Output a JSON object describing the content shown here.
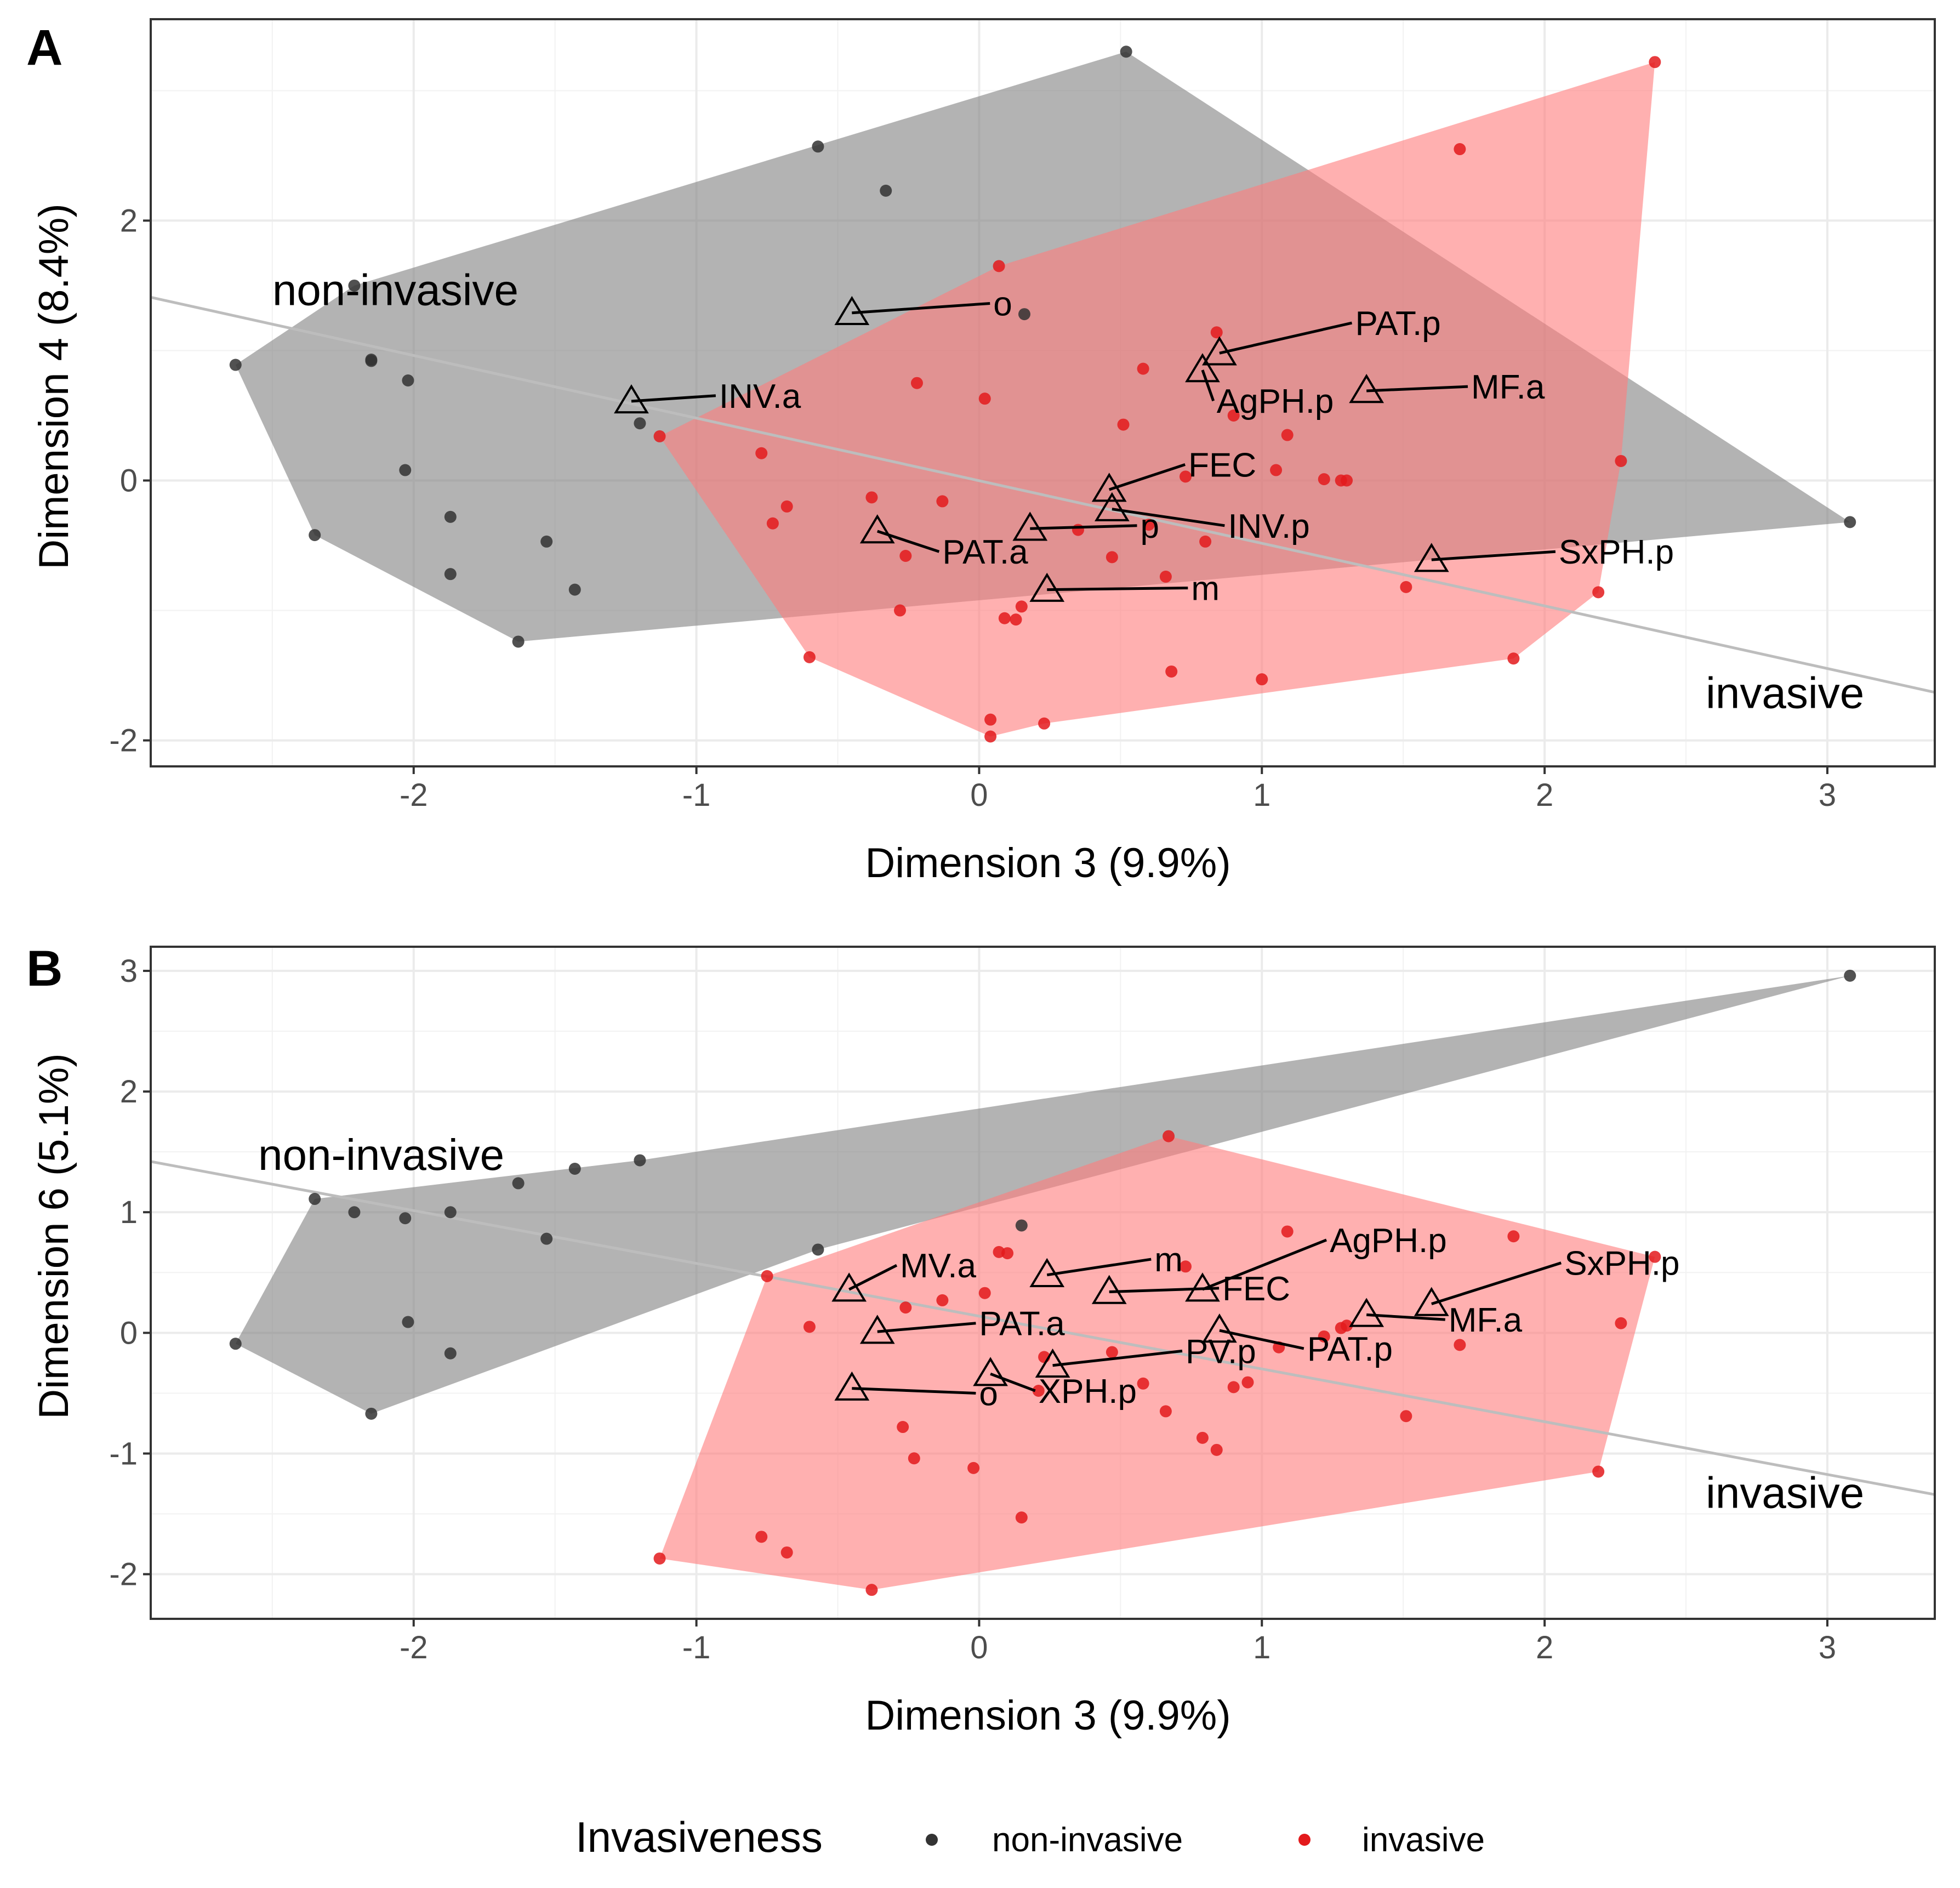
{
  "legend": {
    "title": "Invasiveness",
    "items": [
      {
        "label": "non-invasive",
        "color": "#333333"
      },
      {
        "label": "invasive",
        "color": "#e31a1c"
      }
    ]
  },
  "colors": {
    "non_invasive_point": "#333333",
    "invasive_point": "#e31a1c",
    "non_invasive_hull": "#808080",
    "invasive_hull": "#ff7b7b",
    "grid": "#ebebeb",
    "discriminant_line": "#bdbdbd"
  },
  "chart_data": [
    {
      "type": "scatter",
      "panel": "A",
      "xlabel": "Dimension 3 (9.9%)",
      "ylabel": "Dimension 4 (8.4%)",
      "xlim": [
        -2.93,
        3.38
      ],
      "ylim": [
        -2.2,
        3.55
      ],
      "xticks": [
        -2,
        -1,
        0,
        1,
        2,
        3
      ],
      "yticks": [
        -2,
        0,
        2
      ],
      "grid": true,
      "group_labels": [
        {
          "text": "non-invasive",
          "x": -2.5,
          "y": 1.35
        },
        {
          "text": "invasive",
          "x": 2.57,
          "y": -1.75
        }
      ],
      "discriminant_line": [
        [
          -2.93,
          1.41
        ],
        [
          3.38,
          -1.63
        ]
      ],
      "hulls": [
        {
          "group": "non-invasive",
          "points": [
            [
              -2.63,
              0.89
            ],
            [
              -2.21,
              1.5
            ],
            [
              0.52,
              3.3
            ],
            [
              3.08,
              -0.32
            ],
            [
              -1.63,
              -1.24
            ],
            [
              -2.35,
              -0.42
            ]
          ]
        },
        {
          "group": "invasive",
          "points": [
            [
              -1.13,
              0.34
            ],
            [
              0.07,
              1.65
            ],
            [
              2.39,
              3.22
            ],
            [
              2.27,
              0.15
            ],
            [
              2.19,
              -0.86
            ],
            [
              1.89,
              -1.37
            ],
            [
              0.23,
              -1.87
            ],
            [
              0.04,
              -1.97
            ],
            [
              -0.6,
              -1.36
            ]
          ]
        }
      ],
      "series": [
        {
          "name": "non-invasive",
          "points": [
            [
              -2.63,
              0.89
            ],
            [
              -2.21,
              1.5
            ],
            [
              -2.15,
              0.92
            ],
            [
              -2.15,
              0.93
            ],
            [
              -2.02,
              0.77
            ],
            [
              -2.03,
              0.08
            ],
            [
              -1.87,
              -0.28
            ],
            [
              -1.87,
              -0.72
            ],
            [
              -1.53,
              -0.47
            ],
            [
              -1.43,
              -0.84
            ],
            [
              -2.35,
              -0.42
            ],
            [
              -1.63,
              -1.24
            ],
            [
              -1.2,
              0.44
            ],
            [
              -0.57,
              2.57
            ],
            [
              -0.33,
              2.23
            ],
            [
              0.52,
              3.3
            ],
            [
              0.16,
              1.28
            ],
            [
              3.08,
              -0.32
            ]
          ]
        },
        {
          "name": "invasive",
          "points": [
            [
              -1.13,
              0.34
            ],
            [
              -0.77,
              0.21
            ],
            [
              -0.73,
              -0.33
            ],
            [
              -0.68,
              -0.2
            ],
            [
              -0.38,
              -0.13
            ],
            [
              -0.26,
              -0.58
            ],
            [
              -0.22,
              0.75
            ],
            [
              -0.13,
              -0.16
            ],
            [
              -0.28,
              -1.0
            ],
            [
              -0.6,
              -1.36
            ],
            [
              0.02,
              0.63
            ],
            [
              0.07,
              1.65
            ],
            [
              0.09,
              -1.06
            ],
            [
              0.13,
              -1.07
            ],
            [
              0.15,
              -0.97
            ],
            [
              0.04,
              -1.84
            ],
            [
              0.04,
              -1.97
            ],
            [
              0.23,
              -1.87
            ],
            [
              0.35,
              -0.38
            ],
            [
              0.47,
              -0.59
            ],
            [
              0.51,
              0.43
            ],
            [
              0.58,
              0.86
            ],
            [
              0.6,
              -0.34
            ],
            [
              0.66,
              -0.74
            ],
            [
              0.68,
              -1.47
            ],
            [
              0.73,
              0.03
            ],
            [
              0.8,
              -0.47
            ],
            [
              0.84,
              1.14
            ],
            [
              0.9,
              0.5
            ],
            [
              1.0,
              -1.53
            ],
            [
              1.05,
              0.08
            ],
            [
              1.09,
              0.35
            ],
            [
              1.22,
              0.01
            ],
            [
              1.28,
              0.0
            ],
            [
              1.3,
              0.0
            ],
            [
              1.51,
              -0.82
            ],
            [
              1.7,
              2.55
            ],
            [
              1.89,
              -1.37
            ],
            [
              2.19,
              -0.86
            ],
            [
              2.27,
              0.15
            ],
            [
              2.39,
              3.22
            ]
          ]
        }
      ],
      "variables": [
        {
          "name": "o",
          "tx": -0.45,
          "ty": 1.29,
          "lx": 0.05,
          "ly": 1.27
        },
        {
          "name": "INV.a",
          "tx": -1.23,
          "ty": 0.61,
          "lx": -0.92,
          "ly": 0.56
        },
        {
          "name": "PAT.p",
          "tx": 0.85,
          "ty": 0.98,
          "lx": 1.33,
          "ly": 1.12
        },
        {
          "name": "AgPH.p",
          "tx": 0.79,
          "ty": 0.85,
          "lx": 0.84,
          "ly": 0.52
        },
        {
          "name": "MF.a",
          "tx": 1.37,
          "ty": 0.69,
          "lx": 1.74,
          "ly": 0.63
        },
        {
          "name": "FEC",
          "tx": 0.46,
          "ty": -0.07,
          "lx": 0.74,
          "ly": 0.03
        },
        {
          "name": "INV.p",
          "tx": 0.47,
          "ty": -0.22,
          "lx": 0.88,
          "ly": -0.44
        },
        {
          "name": "p",
          "tx": 0.18,
          "ty": -0.37,
          "lx": 0.57,
          "ly": -0.44
        },
        {
          "name": "PAT.a",
          "tx": -0.36,
          "ty": -0.39,
          "lx": -0.13,
          "ly": -0.64
        },
        {
          "name": "SxPH.p",
          "tx": 1.6,
          "ty": -0.61,
          "lx": 2.05,
          "ly": -0.64
        },
        {
          "name": "m",
          "tx": 0.24,
          "ty": -0.84,
          "lx": 0.75,
          "ly": -0.92
        }
      ]
    },
    {
      "type": "scatter",
      "panel": "B",
      "xlabel": "Dimension 3 (9.9%)",
      "ylabel": "Dimension 6 (5.1%)",
      "xlim": [
        -2.93,
        3.38
      ],
      "ylim": [
        -2.37,
        3.2
      ],
      "xticks": [
        -2,
        -1,
        0,
        1,
        2,
        3
      ],
      "yticks": [
        -2,
        -1,
        0,
        1,
        2,
        3
      ],
      "grid": true,
      "group_labels": [
        {
          "text": "non-invasive",
          "x": -2.55,
          "y": 1.35
        },
        {
          "text": "invasive",
          "x": 2.57,
          "y": -1.45
        }
      ],
      "discriminant_line": [
        [
          -2.93,
          1.42
        ],
        [
          3.38,
          -1.34
        ]
      ],
      "hulls": [
        {
          "group": "non-invasive",
          "points": [
            [
              -2.63,
              -0.09
            ],
            [
              -2.35,
              1.11
            ],
            [
              -1.2,
              1.43
            ],
            [
              3.08,
              2.96
            ],
            [
              -0.57,
              0.69
            ],
            [
              -2.15,
              -0.67
            ]
          ]
        },
        {
          "group": "invasive",
          "points": [
            [
              -1.13,
              -1.87
            ],
            [
              -0.75,
              0.47
            ],
            [
              0.67,
              1.63
            ],
            [
              2.39,
              0.63
            ],
            [
              2.19,
              -1.15
            ],
            [
              -0.38,
              -2.13
            ]
          ]
        }
      ],
      "series": [
        {
          "name": "non-invasive",
          "points": [
            [
              -2.63,
              -0.09
            ],
            [
              -2.35,
              1.11
            ],
            [
              -2.21,
              1.0
            ],
            [
              -2.03,
              0.95
            ],
            [
              -2.02,
              0.09
            ],
            [
              -1.87,
              1.0
            ],
            [
              -1.87,
              -0.17
            ],
            [
              -1.63,
              1.24
            ],
            [
              -1.53,
              0.78
            ],
            [
              -1.43,
              1.36
            ],
            [
              -1.2,
              1.43
            ],
            [
              -2.15,
              -0.67
            ],
            [
              -0.57,
              0.69
            ],
            [
              0.15,
              0.89
            ],
            [
              3.08,
              2.96
            ]
          ]
        },
        {
          "name": "invasive",
          "points": [
            [
              -1.13,
              -1.87
            ],
            [
              -0.77,
              -1.69
            ],
            [
              -0.68,
              -1.82
            ],
            [
              -0.75,
              0.47
            ],
            [
              -0.6,
              0.05
            ],
            [
              -0.38,
              -2.13
            ],
            [
              -0.27,
              -0.78
            ],
            [
              -0.23,
              -1.04
            ],
            [
              -0.26,
              0.21
            ],
            [
              -0.13,
              0.27
            ],
            [
              0.02,
              0.33
            ],
            [
              0.07,
              0.67
            ],
            [
              0.1,
              0.66
            ],
            [
              -0.02,
              -1.12
            ],
            [
              0.15,
              -1.53
            ],
            [
              0.21,
              -0.48
            ],
            [
              0.23,
              -0.2
            ],
            [
              0.47,
              -0.16
            ],
            [
              0.58,
              -0.42
            ],
            [
              0.66,
              -0.65
            ],
            [
              0.67,
              1.63
            ],
            [
              0.73,
              0.55
            ],
            [
              0.79,
              -0.87
            ],
            [
              0.84,
              -0.97
            ],
            [
              0.9,
              -0.45
            ],
            [
              0.95,
              -0.41
            ],
            [
              1.06,
              -0.12
            ],
            [
              1.09,
              0.84
            ],
            [
              1.22,
              -0.03
            ],
            [
              1.28,
              0.04
            ],
            [
              1.3,
              0.06
            ],
            [
              1.51,
              -0.69
            ],
            [
              1.7,
              -0.1
            ],
            [
              1.89,
              0.8
            ],
            [
              2.19,
              -1.15
            ],
            [
              2.27,
              0.08
            ],
            [
              2.39,
              0.63
            ]
          ]
        }
      ],
      "variables": [
        {
          "name": "MV.a",
          "tx": -0.46,
          "ty": 0.36,
          "lx": -0.28,
          "ly": 0.46
        },
        {
          "name": "PAT.a",
          "tx": -0.36,
          "ty": 0.01,
          "lx": 0.0,
          "ly": -0.02
        },
        {
          "name": "o",
          "tx": -0.45,
          "ty": -0.46,
          "lx": 0.0,
          "ly": -0.6
        },
        {
          "name": "XPH.p",
          "tx": 0.04,
          "ty": -0.34,
          "lx": 0.21,
          "ly": -0.58
        },
        {
          "name": "m",
          "tx": 0.24,
          "ty": 0.48,
          "lx": 0.62,
          "ly": 0.51
        },
        {
          "name": "PV.p",
          "tx": 0.26,
          "ty": -0.27,
          "lx": 0.73,
          "ly": -0.25
        },
        {
          "name": "FEC",
          "tx": 0.46,
          "ty": 0.34,
          "lx": 0.86,
          "ly": 0.27
        },
        {
          "name": "AgPH.p",
          "tx": 0.79,
          "ty": 0.36,
          "lx": 1.24,
          "ly": 0.67
        },
        {
          "name": "PAT.p",
          "tx": 0.85,
          "ty": 0.02,
          "lx": 1.16,
          "ly": -0.23
        },
        {
          "name": "MF.a",
          "tx": 1.37,
          "ty": 0.15,
          "lx": 1.66,
          "ly": 0.01
        },
        {
          "name": "SxPH.p",
          "tx": 1.6,
          "ty": 0.24,
          "lx": 2.07,
          "ly": 0.48
        }
      ]
    }
  ]
}
